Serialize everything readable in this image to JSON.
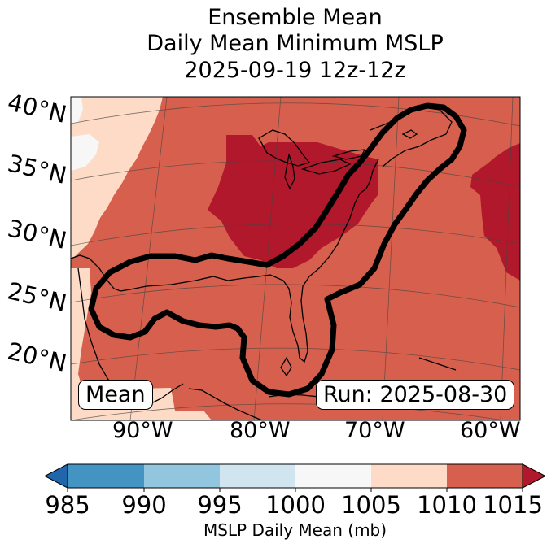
{
  "title": {
    "line1": "Ensemble Mean",
    "line2": "Daily Mean Minimum MSLP",
    "line3": "2025-09-19 12z-12z"
  },
  "map": {
    "lat_labels": [
      "40°N",
      "35°N",
      "30°N",
      "25°N",
      "20°N"
    ],
    "lon_labels": [
      "90°W",
      "80°W",
      "70°W",
      "60°W"
    ],
    "mean_box": "Mean",
    "run_box": "Run: 2025-08-30"
  },
  "colorbar": {
    "label": "MSLP Daily Mean (mb)",
    "ticks": [
      "985",
      "990",
      "995",
      "1000",
      "1005",
      "1010",
      "1015"
    ],
    "colors": {
      "under": "#2166ac",
      "985-990": "#4393c3",
      "990-995": "#92c5de",
      "995-1000": "#d1e5f0",
      "1000-1005": "#f7f7f7",
      "1005-1010": "#fddbc7",
      "1010-1015": "#d6604d",
      "over": "#b2182b"
    }
  }
}
